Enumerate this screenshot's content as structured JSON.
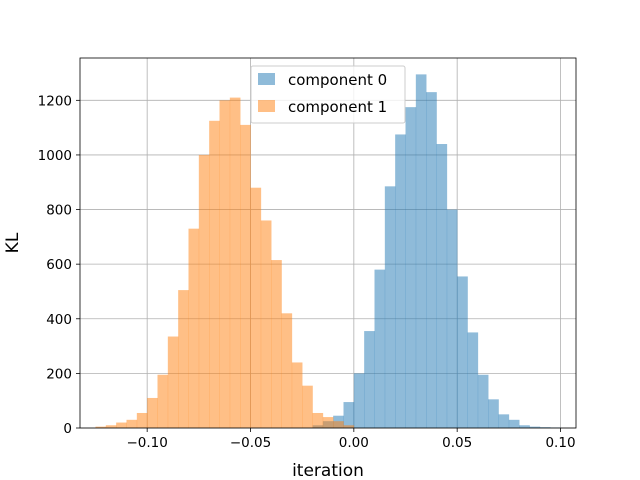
{
  "chart_data": {
    "type": "histogram",
    "xlabel": "iteration",
    "ylabel": "KL",
    "xlim": [
      -0.1325,
      0.1075
    ],
    "ylim": [
      0,
      1355
    ],
    "xticks": [
      -0.1,
      -0.05,
      0.0,
      0.05,
      0.1
    ],
    "xtick_labels": [
      "−0.10",
      "−0.05",
      "0.00",
      "0.05",
      "0.10"
    ],
    "yticks": [
      0,
      200,
      400,
      600,
      800,
      1000,
      1200
    ],
    "ytick_labels": [
      "0",
      "200",
      "400",
      "600",
      "800",
      "1000",
      "1200"
    ],
    "grid": true,
    "legend_position": "top-center",
    "series": [
      {
        "name": "component 0",
        "color": "#1f77b4",
        "alpha": 0.5,
        "bins": [
          [
            -0.02,
            -0.015,
            10
          ],
          [
            -0.015,
            -0.01,
            25
          ],
          [
            -0.01,
            -0.005,
            45
          ],
          [
            -0.005,
            0.0,
            95
          ],
          [
            0.0,
            0.005,
            200
          ],
          [
            0.005,
            0.01,
            355
          ],
          [
            0.01,
            0.015,
            580
          ],
          [
            0.015,
            0.02,
            885
          ],
          [
            0.02,
            0.025,
            1075
          ],
          [
            0.025,
            0.03,
            1175
          ],
          [
            0.03,
            0.035,
            1295
          ],
          [
            0.035,
            0.04,
            1230
          ],
          [
            0.04,
            0.045,
            1040
          ],
          [
            0.045,
            0.05,
            800
          ],
          [
            0.05,
            0.055,
            555
          ],
          [
            0.055,
            0.06,
            350
          ],
          [
            0.06,
            0.065,
            195
          ],
          [
            0.065,
            0.07,
            105
          ],
          [
            0.07,
            0.075,
            50
          ],
          [
            0.075,
            0.08,
            30
          ],
          [
            0.08,
            0.085,
            10
          ],
          [
            0.085,
            0.09,
            5
          ],
          [
            0.09,
            0.095,
            3
          ],
          [
            0.095,
            0.1,
            2
          ]
        ]
      },
      {
        "name": "component 1",
        "color": "#ff7f0e",
        "alpha": 0.5,
        "bins": [
          [
            -0.125,
            -0.12,
            5
          ],
          [
            -0.12,
            -0.115,
            10
          ],
          [
            -0.115,
            -0.11,
            20
          ],
          [
            -0.11,
            -0.105,
            30
          ],
          [
            -0.105,
            -0.1,
            55
          ],
          [
            -0.1,
            -0.095,
            110
          ],
          [
            -0.095,
            -0.09,
            195
          ],
          [
            -0.09,
            -0.085,
            335
          ],
          [
            -0.085,
            -0.08,
            505
          ],
          [
            -0.08,
            -0.075,
            730
          ],
          [
            -0.075,
            -0.07,
            1000
          ],
          [
            -0.07,
            -0.065,
            1125
          ],
          [
            -0.065,
            -0.06,
            1200
          ],
          [
            -0.06,
            -0.055,
            1210
          ],
          [
            -0.055,
            -0.05,
            1110
          ],
          [
            -0.05,
            -0.045,
            880
          ],
          [
            -0.045,
            -0.04,
            760
          ],
          [
            -0.04,
            -0.035,
            615
          ],
          [
            -0.035,
            -0.03,
            420
          ],
          [
            -0.03,
            -0.025,
            240
          ],
          [
            -0.025,
            -0.02,
            155
          ],
          [
            -0.02,
            -0.015,
            55
          ],
          [
            -0.015,
            -0.01,
            40
          ],
          [
            -0.01,
            -0.005,
            25
          ],
          [
            -0.005,
            0.0,
            10
          ]
        ]
      }
    ]
  }
}
